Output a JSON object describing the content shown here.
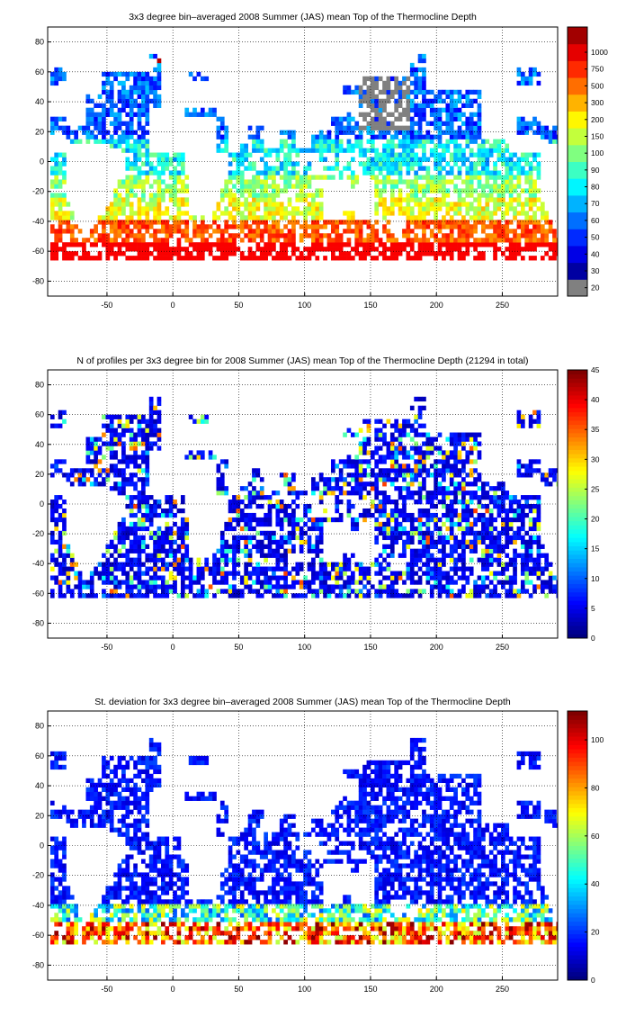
{
  "chart_data": [
    {
      "type": "heatmap",
      "title": "3x3 degree bin–averaged 2008 Summer (JAS) mean Top of the Thermocline Depth",
      "xlim": [
        -95,
        292
      ],
      "ylim": [
        -90,
        90
      ],
      "x_ticks": [
        "-50",
        "0",
        "50",
        "100",
        "150",
        "200",
        "250"
      ],
      "y_ticks": [
        "80",
        "60",
        "40",
        "20",
        "0",
        "-20",
        "-40",
        "-60",
        "-80"
      ],
      "colorbar_labels": [
        "20",
        "30",
        "40",
        "50",
        "60",
        "70",
        "80",
        "90",
        "100",
        "150",
        "200",
        "300",
        "500",
        "750",
        "1000"
      ],
      "colorbar_scale": "categorical",
      "grid": true
    },
    {
      "type": "heatmap",
      "title": "N of profiles per 3x3 degree bin for 2008 Summer (JAS) mean Top of the Thermocline Depth  (21294 in total)",
      "xlim": [
        -95,
        292
      ],
      "ylim": [
        -90,
        90
      ],
      "x_ticks": [
        "-50",
        "0",
        "50",
        "100",
        "150",
        "200",
        "250"
      ],
      "y_ticks": [
        "80",
        "60",
        "40",
        "20",
        "0",
        "-20",
        "-40",
        "-60",
        "-80"
      ],
      "colorbar_labels": [
        "0",
        "5",
        "10",
        "15",
        "20",
        "25",
        "30",
        "35",
        "40",
        "45"
      ],
      "colorbar_range": [
        0,
        45
      ],
      "grid": true
    },
    {
      "type": "heatmap",
      "title": "St. deviation for 3x3 degree bin–averaged 2008 Summer (JAS) mean Top of the Thermocline Depth",
      "xlim": [
        -95,
        292
      ],
      "ylim": [
        -90,
        90
      ],
      "x_ticks": [
        "-50",
        "0",
        "50",
        "100",
        "150",
        "200",
        "250"
      ],
      "y_ticks": [
        "80",
        "60",
        "40",
        "20",
        "0",
        "-20",
        "-40",
        "-60",
        "-80"
      ],
      "colorbar_labels": [
        "0",
        "20",
        "40",
        "60",
        "80",
        "100"
      ],
      "colorbar_range": [
        0,
        112
      ],
      "grid": true
    }
  ]
}
